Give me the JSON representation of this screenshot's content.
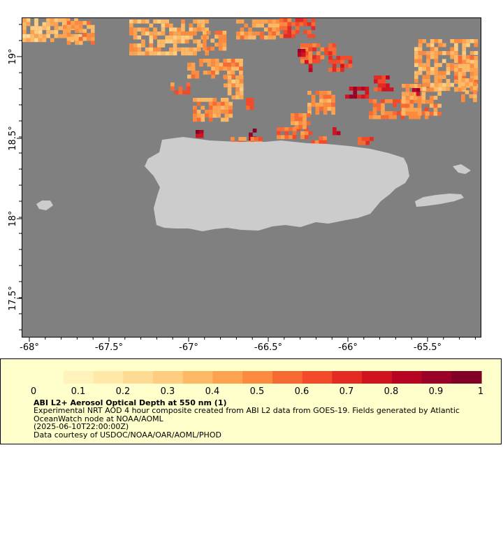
{
  "map": {
    "background_color": "#808080",
    "land_color": "#cccccc",
    "lon_range": [
      -68.05,
      -65.2
    ],
    "lat_range": [
      17.23,
      19.25
    ],
    "lon_ticks": [
      "-68°",
      "-67.5°",
      "-67°",
      "-66.5°",
      "-66°",
      "-65.5°"
    ],
    "lat_ticks": [
      "19°",
      "18.5°",
      "18°",
      "17.5°"
    ],
    "features": [
      "Puerto Rico",
      "Vieques",
      "Culebra",
      "Mona Island"
    ]
  },
  "legend": {
    "title": "ABI L2+ Aerosol Optical Depth at 550 nm (1)",
    "line1": "Experimental NRT AOD 4 hour composite created from ABI L2 data from GOES-19. Fields generated by Atlantic OceanWatch node at NOAA/AOML",
    "timestamp": "(2025-06-10T22:00:00Z)",
    "credit": "Data courtesy of USDOC/NOAA/OAR/AOML/PHOD",
    "tick_labels": [
      "0",
      "0.1",
      "0.2",
      "0.3",
      "0.4",
      "0.5",
      "0.6",
      "0.7",
      "0.8",
      "0.9",
      "1"
    ],
    "range": [
      0,
      1
    ],
    "colors": [
      "#ffffcc",
      "#fff3bb",
      "#ffe8a8",
      "#fedb94",
      "#fecd80",
      "#feb966",
      "#fda350",
      "#fc8a3f",
      "#f86a33",
      "#f24a2a",
      "#e42a22",
      "#d0131e",
      "#b60422",
      "#9a0028",
      "#800026"
    ]
  }
}
